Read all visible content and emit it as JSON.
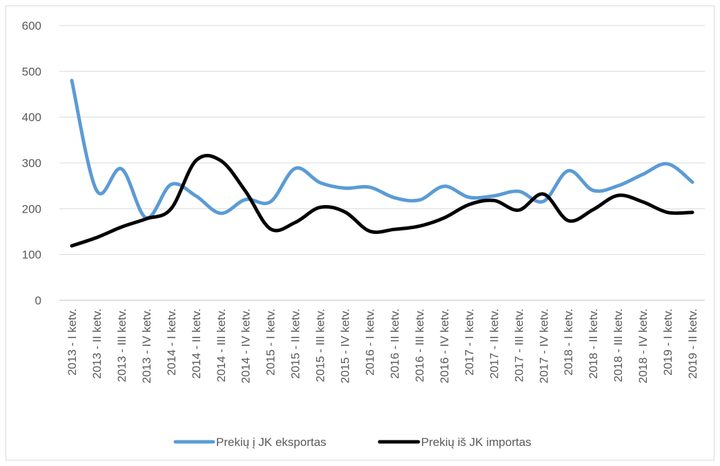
{
  "chart_data": {
    "type": "line",
    "title": "",
    "xlabel": "",
    "ylabel": "",
    "ylim": [
      0,
      600
    ],
    "yticks": [
      0,
      100,
      200,
      300,
      400,
      500,
      600
    ],
    "grid": true,
    "legend_position": "bottom",
    "categories": [
      "2013 - I ketv.",
      "2013 - II ketv.",
      "2013 - III ketv.",
      "2013 - IV ketv.",
      "2014 - I ketv.",
      "2014 - II ketv.",
      "2014 - III ketv.",
      "2014 - IV ketv.",
      "2015 - I ketv.",
      "2015 - II ketv.",
      "2015 - III ketv.",
      "2015 - IV ketv.",
      "2016 - I ketv.",
      "2016 - II ketv.",
      "2016 - III ketv.",
      "2016 - IV ketv.",
      "2017 - I ketv.",
      "2017 - II ketv.",
      "2017 - III ketv.",
      "2017 - IV ketv.",
      "2018 - I ketv.",
      "2018 - II ketv.",
      "2018 - III ketv.",
      "2018 - IV ketv.",
      "2019 - I ketv.",
      "2019 - II ketv."
    ],
    "series": [
      {
        "name": "Prekių į JK eksportas",
        "color": "#5b9bd5",
        "values": [
          480,
          240,
          287,
          180,
          253,
          228,
          190,
          220,
          215,
          288,
          257,
          245,
          247,
          224,
          219,
          249,
          225,
          228,
          238,
          216,
          283,
          240,
          250,
          275,
          298,
          258
        ]
      },
      {
        "name": "Prekių iš JK importas",
        "color": "#000000",
        "values": [
          119,
          137,
          160,
          178,
          200,
          305,
          305,
          238,
          156,
          170,
          203,
          193,
          151,
          155,
          162,
          180,
          209,
          218,
          197,
          232,
          174,
          198,
          229,
          215,
          192,
          192
        ]
      }
    ]
  }
}
